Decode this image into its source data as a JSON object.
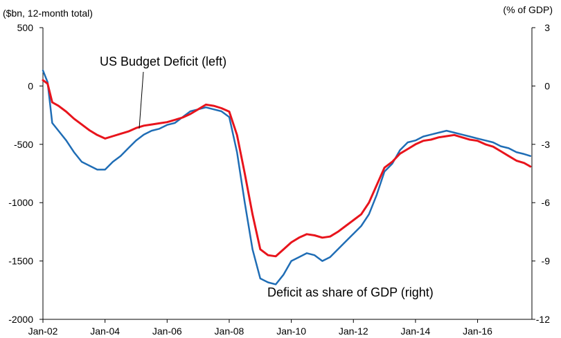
{
  "chart_data": {
    "type": "line",
    "left_axis": {
      "unit_label": "($bn, 12-month total)",
      "ylim": [
        -2000,
        500
      ],
      "ticks": [
        500,
        0,
        -500,
        -1000,
        -1500,
        -2000
      ],
      "tick_labels": [
        "500",
        "0",
        "-500",
        "-1000",
        "-1500",
        "-2000"
      ]
    },
    "right_axis": {
      "unit_label": "(% of GDP)",
      "ylim": [
        -12,
        3
      ],
      "ticks": [
        3,
        0,
        -3,
        -6,
        -9,
        -12
      ],
      "tick_labels": [
        "3",
        "0",
        "-3",
        "-6",
        "-9",
        "-12"
      ]
    },
    "x_axis": {
      "range": [
        2002.0,
        2017.75
      ],
      "ticks": [
        2002,
        2004,
        2006,
        2008,
        2010,
        2012,
        2014,
        2016
      ],
      "tick_labels": [
        "Jan-02",
        "Jan-04",
        "Jan-06",
        "Jan-08",
        "Jan-10",
        "Jan-12",
        "Jan-14",
        "Jan-16"
      ]
    },
    "grid": false,
    "legend": "none",
    "series": [
      {
        "name": "US Budget Deficit (left)",
        "axis": "left",
        "color": "#e8141c",
        "x": [
          2002.0,
          2002.15,
          2002.3,
          2002.5,
          2002.75,
          2003.0,
          2003.25,
          2003.5,
          2003.75,
          2004.0,
          2004.25,
          2004.5,
          2004.75,
          2005.0,
          2005.25,
          2005.5,
          2005.75,
          2006.0,
          2006.25,
          2006.5,
          2006.75,
          2007.0,
          2007.25,
          2007.5,
          2007.75,
          2008.0,
          2008.25,
          2008.5,
          2008.75,
          2009.0,
          2009.25,
          2009.5,
          2009.75,
          2010.0,
          2010.25,
          2010.5,
          2010.75,
          2011.0,
          2011.25,
          2011.5,
          2011.75,
          2012.0,
          2012.25,
          2012.5,
          2012.75,
          2013.0,
          2013.25,
          2013.5,
          2013.75,
          2014.0,
          2014.25,
          2014.5,
          2014.75,
          2015.0,
          2015.25,
          2015.5,
          2015.75,
          2016.0,
          2016.25,
          2016.5,
          2016.75,
          2017.0,
          2017.25,
          2017.5,
          2017.7
        ],
        "values": [
          50,
          20,
          -140,
          -170,
          -220,
          -280,
          -330,
          -380,
          -420,
          -450,
          -430,
          -410,
          -390,
          -360,
          -340,
          -330,
          -320,
          -310,
          -290,
          -270,
          -240,
          -200,
          -160,
          -170,
          -190,
          -220,
          -420,
          -750,
          -1100,
          -1400,
          -1450,
          -1460,
          -1400,
          -1340,
          -1300,
          -1270,
          -1280,
          -1300,
          -1290,
          -1250,
          -1200,
          -1150,
          -1100,
          -1000,
          -850,
          -700,
          -650,
          -580,
          -540,
          -500,
          -470,
          -460,
          -440,
          -430,
          -420,
          -440,
          -460,
          -470,
          -500,
          -520,
          -560,
          -600,
          -640,
          -660,
          -690
        ]
      },
      {
        "name": "Deficit as share of GDP (right)",
        "axis": "right",
        "color": "#1f6db5",
        "x": [
          2002.0,
          2002.15,
          2002.3,
          2002.5,
          2002.75,
          2003.0,
          2003.25,
          2003.5,
          2003.75,
          2004.0,
          2004.25,
          2004.5,
          2004.75,
          2005.0,
          2005.25,
          2005.5,
          2005.75,
          2006.0,
          2006.25,
          2006.5,
          2006.75,
          2007.0,
          2007.25,
          2007.5,
          2007.75,
          2008.0,
          2008.25,
          2008.5,
          2008.75,
          2009.0,
          2009.25,
          2009.5,
          2009.75,
          2010.0,
          2010.25,
          2010.5,
          2010.75,
          2011.0,
          2011.25,
          2011.5,
          2011.75,
          2012.0,
          2012.25,
          2012.5,
          2012.75,
          2013.0,
          2013.25,
          2013.5,
          2013.75,
          2014.0,
          2014.25,
          2014.5,
          2014.75,
          2015.0,
          2015.25,
          2015.5,
          2015.75,
          2016.0,
          2016.25,
          2016.5,
          2016.75,
          2017.0,
          2017.25,
          2017.5,
          2017.7
        ],
        "values": [
          0.8,
          0.2,
          -1.9,
          -2.3,
          -2.8,
          -3.4,
          -3.9,
          -4.1,
          -4.3,
          -4.3,
          -3.9,
          -3.6,
          -3.2,
          -2.8,
          -2.5,
          -2.3,
          -2.2,
          -2.0,
          -1.9,
          -1.6,
          -1.3,
          -1.2,
          -1.1,
          -1.2,
          -1.3,
          -1.6,
          -3.4,
          -6.0,
          -8.4,
          -9.9,
          -10.1,
          -10.2,
          -9.7,
          -9.0,
          -8.8,
          -8.6,
          -8.7,
          -9.0,
          -8.8,
          -8.4,
          -8.0,
          -7.6,
          -7.2,
          -6.6,
          -5.6,
          -4.4,
          -4.0,
          -3.3,
          -2.9,
          -2.8,
          -2.6,
          -2.5,
          -2.4,
          -2.3,
          -2.4,
          -2.5,
          -2.6,
          -2.7,
          -2.8,
          -2.9,
          -3.1,
          -3.2,
          -3.4,
          -3.5,
          -3.6
        ]
      }
    ],
    "annotations": [
      {
        "text": "US Budget Deficit (left)"
      },
      {
        "text": "Deficit as share of GDP (right)"
      }
    ]
  }
}
